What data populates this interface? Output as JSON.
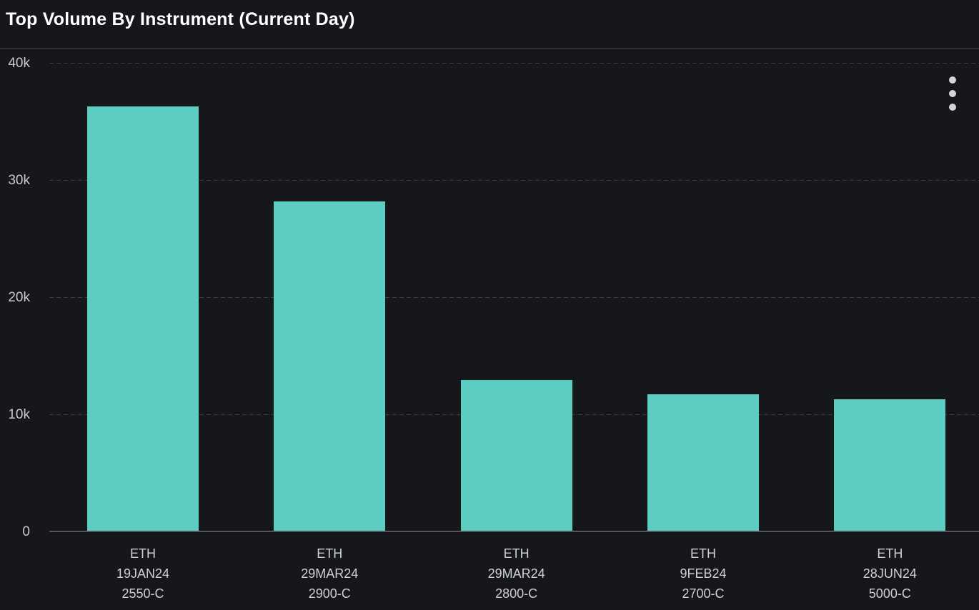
{
  "panel": {
    "title": "Top Volume By Instrument (Current Day)",
    "menu_icon": "kebab-menu"
  },
  "colors": {
    "background": "#16171a",
    "bar": "#5dccc1",
    "title_text": "#ffffff",
    "axis_text": "#c8c9cb",
    "category_text": "#ced0d2",
    "gridline": "#3c3d41",
    "baseline": "#55565a",
    "menu_dots": "#d5d5d5"
  },
  "chart_data": {
    "type": "bar",
    "title": "Top Volume By Instrument (Current Day)",
    "categories": [
      [
        "ETH",
        "19JAN24",
        "2550-C"
      ],
      [
        "ETH",
        "29MAR24",
        "2900-C"
      ],
      [
        "ETH",
        "29MAR24",
        "2800-C"
      ],
      [
        "ETH",
        "9FEB24",
        "2700-C"
      ],
      [
        "ETH",
        "28JUN24",
        "5000-C"
      ]
    ],
    "values": [
      36300,
      28200,
      12900,
      11700,
      11300
    ],
    "xlabel": "",
    "ylabel": "",
    "ylim": [
      0,
      40000
    ],
    "yticks": [
      {
        "value": 0,
        "label": "0"
      },
      {
        "value": 10000,
        "label": "10k"
      },
      {
        "value": 20000,
        "label": "20k"
      },
      {
        "value": 30000,
        "label": "30k"
      },
      {
        "value": 40000,
        "label": "40k"
      }
    ],
    "grid": "horizontal-dashed",
    "legend": "none",
    "bar_color": "#5dccc1"
  }
}
